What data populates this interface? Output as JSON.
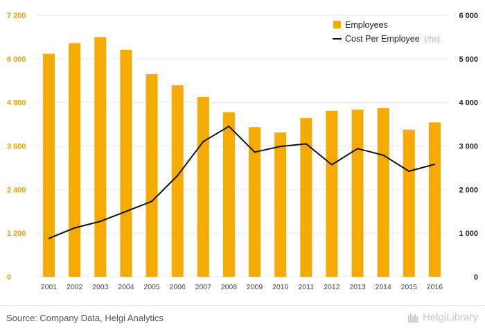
{
  "chart_data": {
    "type": "bar",
    "categories": [
      "2001",
      "2002",
      "2003",
      "2004",
      "2005",
      "2006",
      "2007",
      "2008",
      "2009",
      "2010",
      "2011",
      "2012",
      "2013",
      "2014",
      "2015",
      "2016"
    ],
    "series": [
      {
        "name": "Employees",
        "type": "bar",
        "axis": "left",
        "color": "#f5aa00",
        "values": [
          6140,
          6430,
          6600,
          6250,
          5580,
          5270,
          4950,
          4530,
          4120,
          3970,
          4370,
          4570,
          4600,
          4640,
          4050,
          4250
        ]
      },
      {
        "name": "Cost Per Employee",
        "unit": "(rhs)",
        "type": "line",
        "axis": "right",
        "color": "#111111",
        "values": [
          880,
          1120,
          1270,
          1500,
          1730,
          2320,
          3100,
          3450,
          2860,
          2990,
          3050,
          2570,
          2940,
          2790,
          2420,
          2580
        ]
      }
    ],
    "y_left": {
      "min": 0,
      "max": 7200,
      "ticks": [
        "0",
        "1 200",
        "2 400",
        "3 600",
        "4 800",
        "6 000",
        "7 200"
      ]
    },
    "y_right": {
      "min": 0,
      "max": 6000,
      "ticks": [
        "0",
        "1 000",
        "2 000",
        "3 000",
        "4 000",
        "5 000",
        "6 000"
      ]
    },
    "grid": true,
    "legend_position": "top-right"
  },
  "footer": {
    "source": "Source: Company Data, Helgi Analytics",
    "brand": "HelgiLibrary"
  }
}
